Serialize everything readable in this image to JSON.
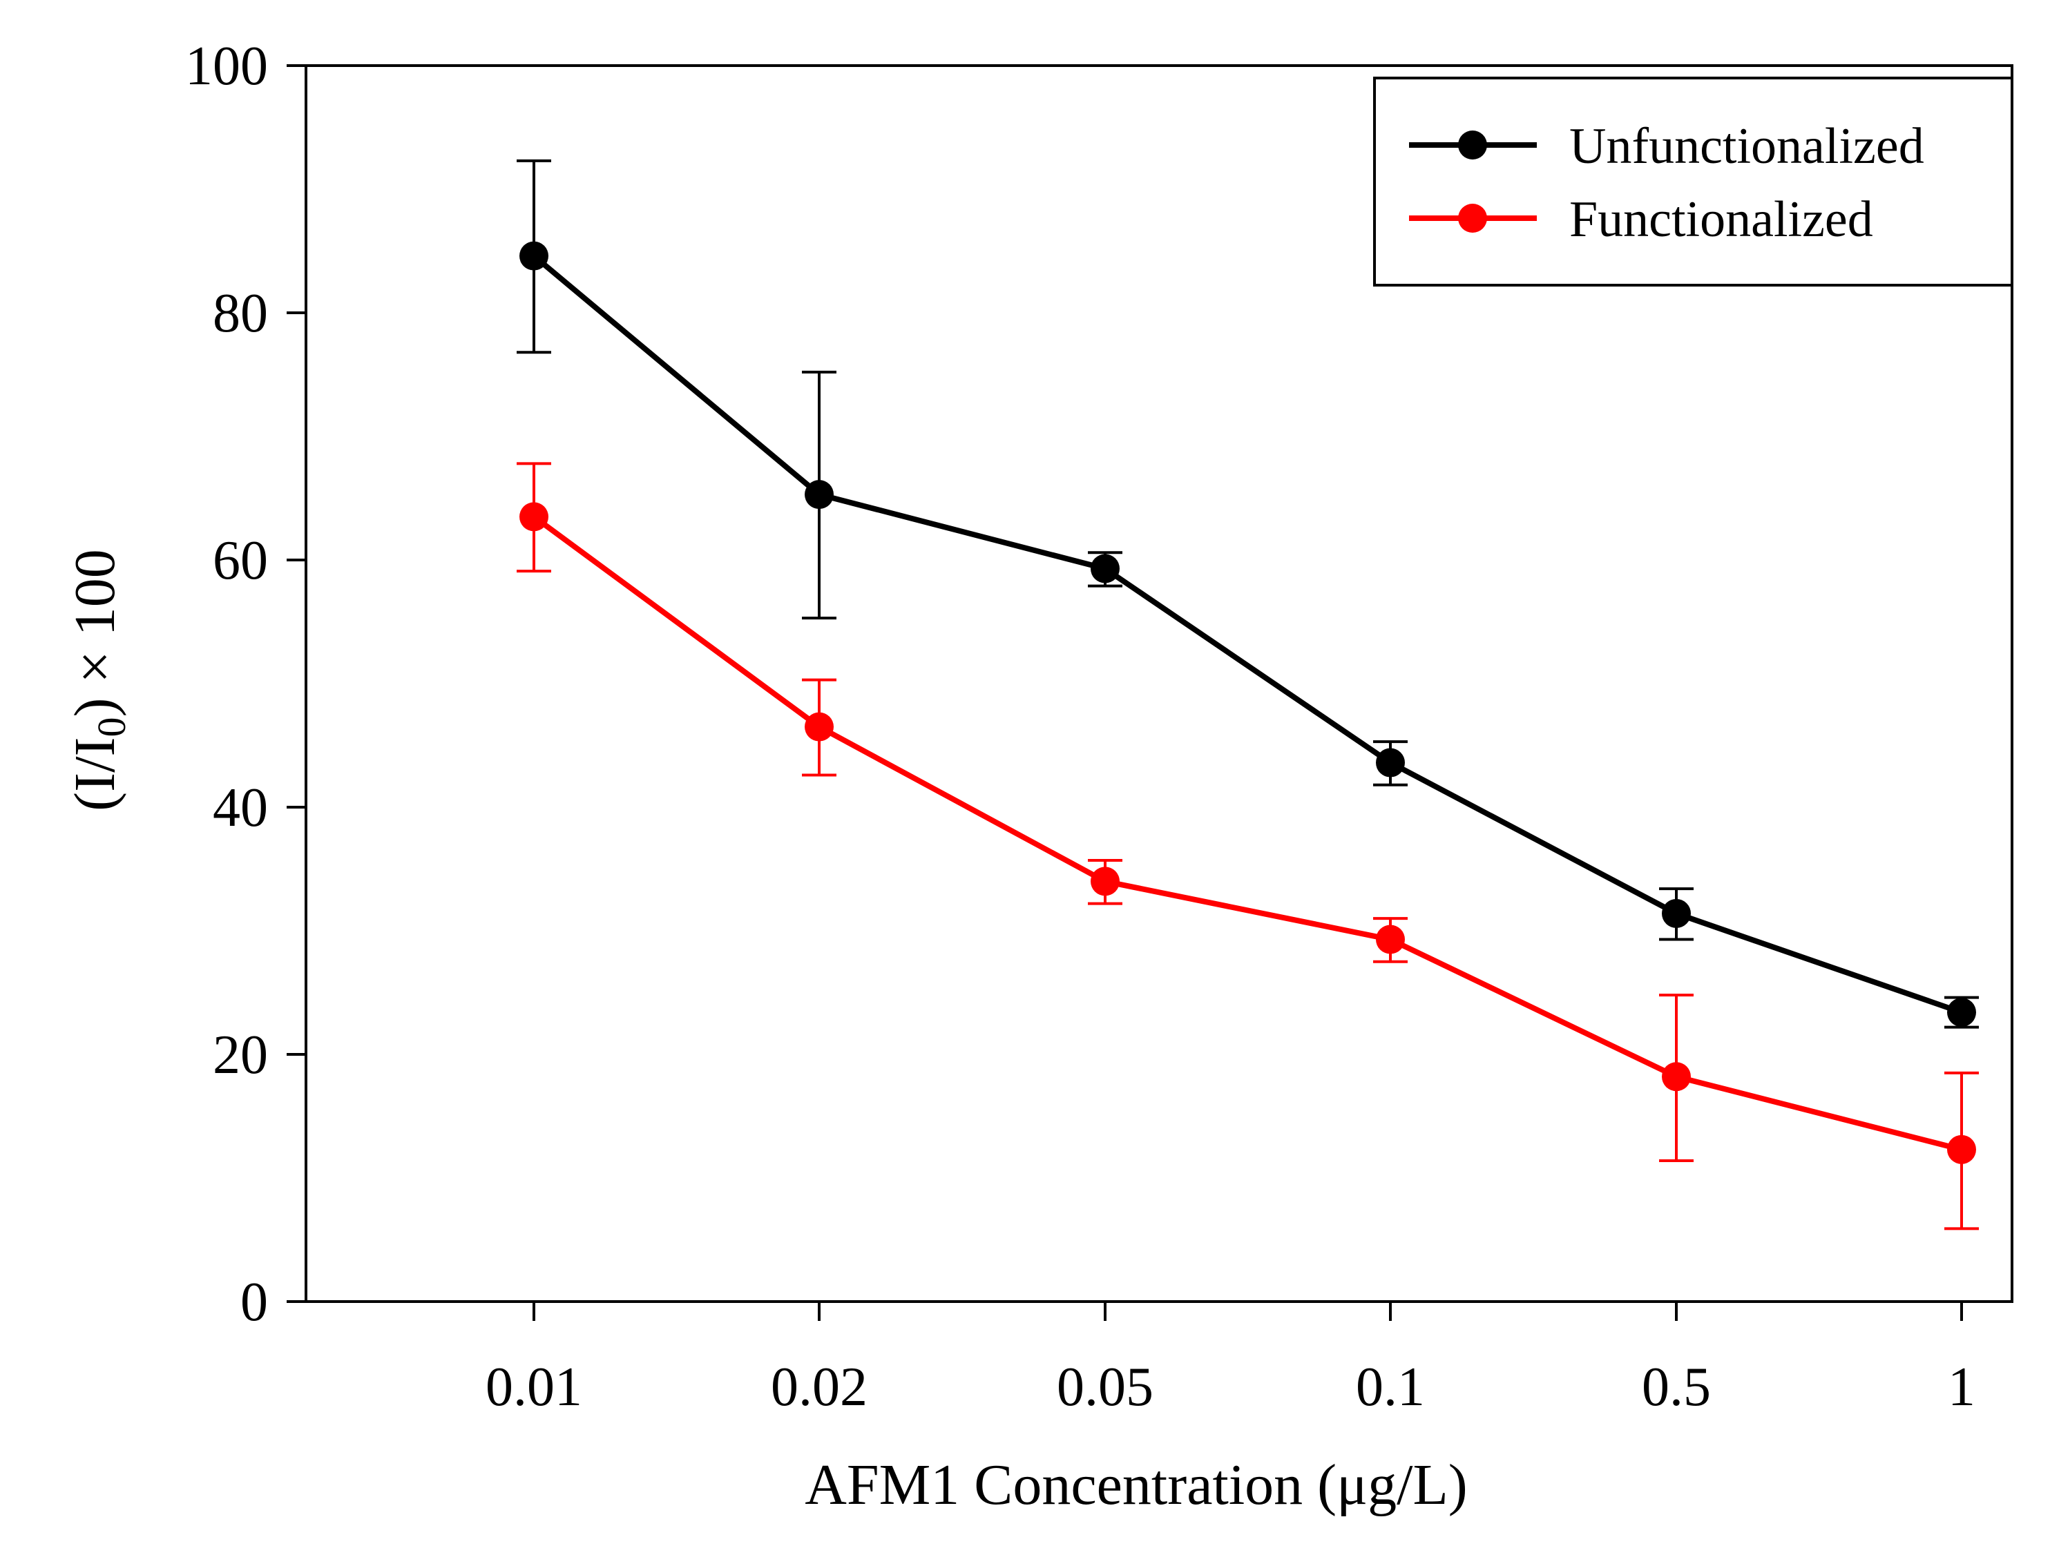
{
  "chart_data": {
    "type": "line",
    "title": "",
    "xlabel": "AFM1 Concentration (μg/L)",
    "ylabel": {
      "open": "(I/I",
      "sub": "0",
      "close": ") × 100"
    },
    "categories": [
      "0.01",
      "0.02",
      "0.05",
      "0.1",
      "0.5",
      "1"
    ],
    "ylim": [
      0,
      100
    ],
    "yticks": [
      "0",
      "20",
      "40",
      "60",
      "80",
      "100"
    ],
    "ytick_values": [
      0,
      20,
      40,
      60,
      80,
      100
    ],
    "grid": false,
    "legend_position": "top-right",
    "series": [
      {
        "name": "Unfunctionalized",
        "color": "#000000",
        "values": [
          84.6,
          65.3,
          59.3,
          43.6,
          31.4,
          23.4
        ],
        "error_upper": [
          92.3,
          75.2,
          60.6,
          45.3,
          33.4,
          24.6
        ],
        "error_lower": [
          76.8,
          55.3,
          57.9,
          41.8,
          29.3,
          22.2
        ]
      },
      {
        "name": "Functionalized",
        "color": "#ff0000",
        "values": [
          63.5,
          46.5,
          34.0,
          29.3,
          18.2,
          12.3
        ],
        "error_upper": [
          67.8,
          50.3,
          35.7,
          31.0,
          24.8,
          18.5
        ],
        "error_lower": [
          59.1,
          42.6,
          32.2,
          27.5,
          11.4,
          5.9
        ]
      }
    ]
  }
}
